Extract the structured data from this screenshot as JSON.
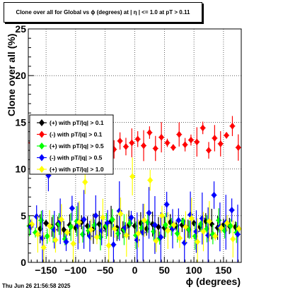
{
  "chart_data": {
    "type": "scatter",
    "title": "Clone  over all for Global vs ϕ  (degrees) at |  η  | <= 1.0 at pT > 0.11",
    "xlabel": "ϕ  (degrees)",
    "ylabel": "Clone  over all (%)",
    "xlim": [
      -180,
      180
    ],
    "ylim": [
      0,
      25
    ],
    "x_ticks": [
      -150,
      -100,
      -50,
      0,
      50,
      100,
      150
    ],
    "x_tick_labels": [
      "−150",
      "−100",
      "−50",
      "0",
      "50",
      "100",
      "150"
    ],
    "y_ticks": [
      0,
      5,
      10,
      15,
      20,
      25
    ],
    "y_tick_labels": [
      "0",
      "5",
      "10",
      "15",
      "20",
      "25"
    ],
    "grid": true,
    "legend_position": "left-middle",
    "series": [
      {
        "name": "(+) with pT/|q| > 0.1",
        "color": "#000000",
        "marker": "diamond",
        "x": [
          -175,
          -160,
          -150,
          -140,
          -130,
          -120,
          -110,
          -100,
          -90,
          -80,
          -70,
          -60,
          -50,
          -40,
          -30,
          -20,
          -10,
          0,
          10,
          20,
          30,
          40,
          50,
          60,
          70,
          80,
          90,
          100,
          110,
          120,
          130,
          140,
          150,
          160,
          170
        ],
        "y": [
          4.0,
          3.6,
          4.2,
          3.8,
          4.1,
          3.5,
          4.0,
          3.7,
          4.3,
          3.9,
          3.6,
          4.1,
          3.8,
          4.4,
          3.7,
          3.5,
          4.0,
          3.9,
          4.2,
          3.6,
          4.1,
          3.8,
          3.7,
          4.3,
          3.9,
          4.0,
          3.6,
          4.2,
          3.8,
          4.4,
          4.1,
          3.7,
          4.0,
          3.9,
          3.8
        ]
      },
      {
        "name": "(-) with pT/|q| > 0.1",
        "color": "#ff0000",
        "marker": "diamond",
        "x": [
          -175,
          -165,
          -155,
          -145,
          -135,
          -125,
          -115,
          -105,
          -95,
          -85,
          -75,
          -65,
          -55,
          -45,
          -35,
          -25,
          -15,
          -5,
          5,
          15,
          25,
          35,
          45,
          55,
          65,
          75,
          85,
          95,
          105,
          115,
          125,
          135,
          145,
          155,
          165,
          175
        ],
        "y": [
          12.8,
          13.5,
          12.2,
          14.0,
          12.6,
          13.1,
          12.4,
          13.8,
          12.9,
          13.3,
          12.5,
          14.2,
          12.7,
          13.6,
          12.1,
          13.0,
          12.4,
          12.8,
          13.2,
          12.5,
          13.9,
          12.2,
          13.4,
          12.8,
          12.3,
          13.7,
          12.6,
          13.1,
          12.9,
          14.4,
          12.0,
          13.3,
          12.7,
          13.6,
          14.6,
          12.3
        ]
      },
      {
        "name": "(+) with pT/|q| > 0.5",
        "color": "#00ff00",
        "marker": "diamond",
        "x": [
          -178,
          -168,
          -158,
          -148,
          -138,
          -128,
          -118,
          -108,
          -98,
          -88,
          -78,
          -68,
          -58,
          -48,
          -38,
          -28,
          -18,
          -8,
          2,
          12,
          22,
          32,
          42,
          52,
          62,
          72,
          82,
          92,
          102,
          112,
          122,
          132,
          142,
          152,
          162,
          172
        ],
        "y": [
          3.9,
          3.2,
          4.5,
          2.8,
          3.6,
          4.1,
          2.5,
          3.8,
          4.4,
          3.0,
          3.4,
          4.0,
          2.7,
          3.9,
          4.6,
          3.1,
          3.5,
          4.2,
          2.9,
          3.7,
          4.3,
          3.3,
          2.6,
          4.0,
          3.8,
          3.1,
          4.4,
          3.5,
          2.8,
          4.1,
          3.6,
          3.0,
          4.5,
          3.4,
          3.9,
          3.2
        ]
      },
      {
        "name": "(-) with pT/|q| > 0.5",
        "color": "#0000ff",
        "marker": "diamond",
        "x": [
          -176,
          -166,
          -156,
          -146,
          -136,
          -126,
          -116,
          -106,
          -96,
          -86,
          -76,
          -66,
          -56,
          -46,
          -36,
          -26,
          -16,
          -6,
          4,
          14,
          24,
          34,
          44,
          54,
          64,
          74,
          84,
          94,
          104,
          114,
          124,
          134,
          144,
          154,
          164,
          174
        ],
        "y": [
          3.8,
          4.9,
          2.6,
          9.3,
          3.5,
          4.4,
          2.2,
          5.8,
          3.9,
          4.6,
          2.8,
          5.0,
          3.4,
          4.2,
          1.9,
          5.5,
          3.7,
          4.8,
          2.4,
          3.2,
          5.3,
          4.0,
          2.7,
          6.2,
          3.6,
          4.5,
          2.1,
          5.1,
          3.3,
          4.7,
          2.9,
          7.2,
          3.8,
          4.3,
          5.6,
          3.0
        ]
      },
      {
        "name": "(+) with pT/|q| > 1.0",
        "color": "#ffff00",
        "marker": "diamond",
        "x": [
          -174,
          -164,
          -154,
          -144,
          -134,
          -124,
          -114,
          -104,
          -94,
          -84,
          -74,
          -64,
          -54,
          -44,
          -34,
          -24,
          -14,
          -4,
          6,
          16,
          26,
          36,
          46,
          56,
          66,
          76,
          86,
          96,
          106,
          116,
          126,
          136,
          146,
          156,
          166,
          176
        ],
        "y": [
          4.1,
          3.0,
          1.6,
          3.9,
          2.4,
          4.6,
          3.2,
          2.0,
          4.3,
          8.6,
          3.5,
          2.7,
          4.8,
          1.8,
          3.6,
          5.2,
          2.9,
          9.2,
          3.1,
          4.5,
          8.8,
          2.3,
          5.0,
          3.4,
          4.0,
          2.6,
          3.8,
          4.7,
          2.2,
          3.3,
          4.4,
          2.8,
          3.7,
          4.2,
          2.5,
          3.6
        ]
      }
    ]
  },
  "timestamp": "Thu Jun 26 21:56:58 2025"
}
